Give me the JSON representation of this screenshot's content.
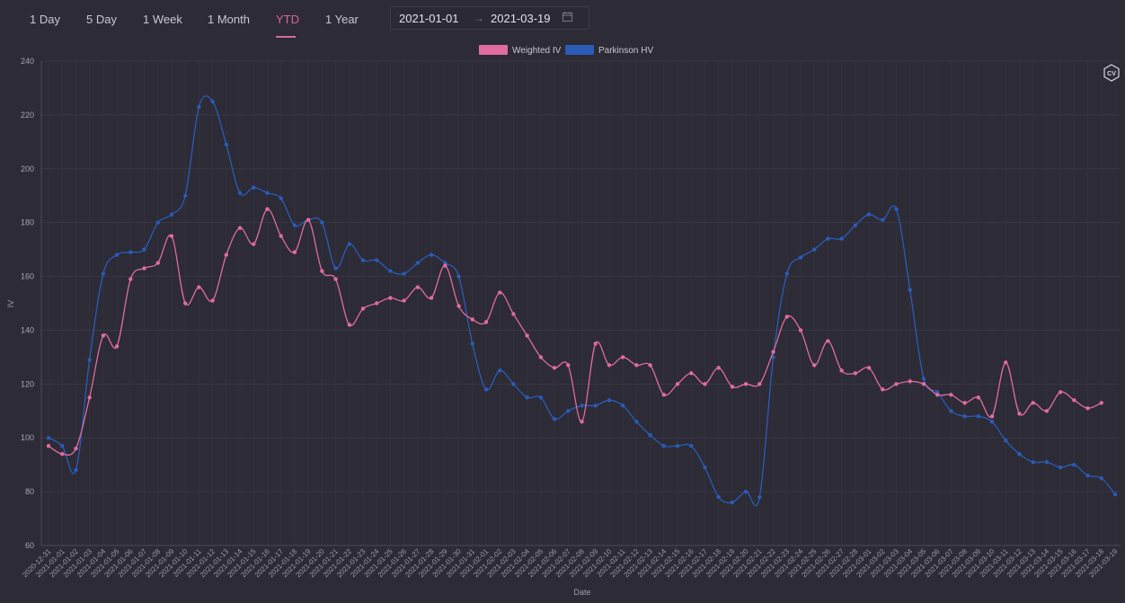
{
  "toolbar": {
    "tabs": [
      {
        "label": "1 Day"
      },
      {
        "label": "5 Day"
      },
      {
        "label": "1 Week"
      },
      {
        "label": "1 Month"
      },
      {
        "label": "YTD"
      },
      {
        "label": "1 Year"
      }
    ],
    "active_tab": "YTD",
    "date_range": {
      "start": "2021-01-01",
      "arrow": "→",
      "end": "2021-03-19"
    }
  },
  "logo_text": "CV",
  "colors": {
    "weighted_iv": "#e06c9f",
    "parkinson_hv": "#2a5cb8",
    "background": "#2c2b36",
    "grid": "#3a3946",
    "accent": "#d9679a"
  },
  "chart_data": {
    "type": "line",
    "title": "",
    "xlabel": "Date",
    "ylabel": "IV",
    "ylim": [
      60,
      240
    ],
    "yticks": [
      60,
      80,
      100,
      120,
      140,
      160,
      180,
      200,
      220,
      240
    ],
    "grid": true,
    "legend_position": "top-center",
    "x": [
      "2020-12-31",
      "2021-01-01",
      "2021-01-02",
      "2021-01-03",
      "2021-01-04",
      "2021-01-05",
      "2021-01-06",
      "2021-01-07",
      "2021-01-08",
      "2021-01-09",
      "2021-01-10",
      "2021-01-11",
      "2021-01-12",
      "2021-01-13",
      "2021-01-14",
      "2021-01-15",
      "2021-01-16",
      "2021-01-17",
      "2021-01-18",
      "2021-01-19",
      "2021-01-20",
      "2021-01-21",
      "2021-01-22",
      "2021-01-23",
      "2021-01-24",
      "2021-01-25",
      "2021-01-26",
      "2021-01-27",
      "2021-01-28",
      "2021-01-29",
      "2021-01-30",
      "2021-01-31",
      "2021-02-01",
      "2021-02-02",
      "2021-02-03",
      "2021-02-04",
      "2021-02-05",
      "2021-02-06",
      "2021-02-07",
      "2021-02-08",
      "2021-02-09",
      "2021-02-10",
      "2021-02-11",
      "2021-02-12",
      "2021-02-13",
      "2021-02-14",
      "2021-02-15",
      "2021-02-16",
      "2021-02-17",
      "2021-02-18",
      "2021-02-19",
      "2021-02-20",
      "2021-02-21",
      "2021-02-22",
      "2021-02-23",
      "2021-02-24",
      "2021-02-25",
      "2021-02-26",
      "2021-02-27",
      "2021-02-28",
      "2021-03-01",
      "2021-03-02",
      "2021-03-03",
      "2021-03-04",
      "2021-03-05",
      "2021-03-06",
      "2021-03-07",
      "2021-03-08",
      "2021-03-09",
      "2021-03-10",
      "2021-03-11",
      "2021-03-12",
      "2021-03-13",
      "2021-03-14",
      "2021-03-15",
      "2021-03-16",
      "2021-03-17",
      "2021-03-18",
      "2021-03-19"
    ],
    "series": [
      {
        "name": "Weighted IV",
        "values": [
          97,
          94,
          96,
          115,
          138,
          134,
          159,
          163,
          165,
          175,
          150,
          156,
          151,
          168,
          178,
          172,
          185,
          175,
          169,
          181,
          162,
          159,
          142,
          148,
          150,
          152,
          151,
          156,
          152,
          164,
          149,
          144,
          143,
          154,
          146,
          138,
          130,
          126,
          127,
          106,
          135,
          127,
          130,
          127,
          127,
          116,
          120,
          124,
          120,
          126,
          119,
          120,
          120,
          132,
          145,
          140,
          127,
          136,
          125,
          124,
          126,
          118,
          120,
          121,
          120,
          116,
          116,
          113,
          115,
          108,
          128,
          109,
          113,
          110,
          117,
          114,
          111,
          113,
          null
        ]
      },
      {
        "name": "Parkinson HV",
        "values": [
          100,
          97,
          88,
          129,
          161,
          168,
          169,
          170,
          180,
          183,
          190,
          223,
          225,
          209,
          191,
          193,
          191,
          189,
          179,
          181,
          180,
          163,
          172,
          166,
          166,
          162,
          161,
          165,
          168,
          165,
          160,
          135,
          118,
          125,
          120,
          115,
          115,
          107,
          110,
          112,
          112,
          114,
          112,
          106,
          101,
          97,
          97,
          97,
          89,
          78,
          76,
          80,
          78,
          130,
          161,
          167,
          170,
          174,
          174,
          179,
          183,
          181,
          185,
          155,
          122,
          117,
          110,
          108,
          108,
          106,
          99,
          94,
          91,
          91,
          89,
          90,
          86,
          85,
          79
        ]
      }
    ]
  }
}
